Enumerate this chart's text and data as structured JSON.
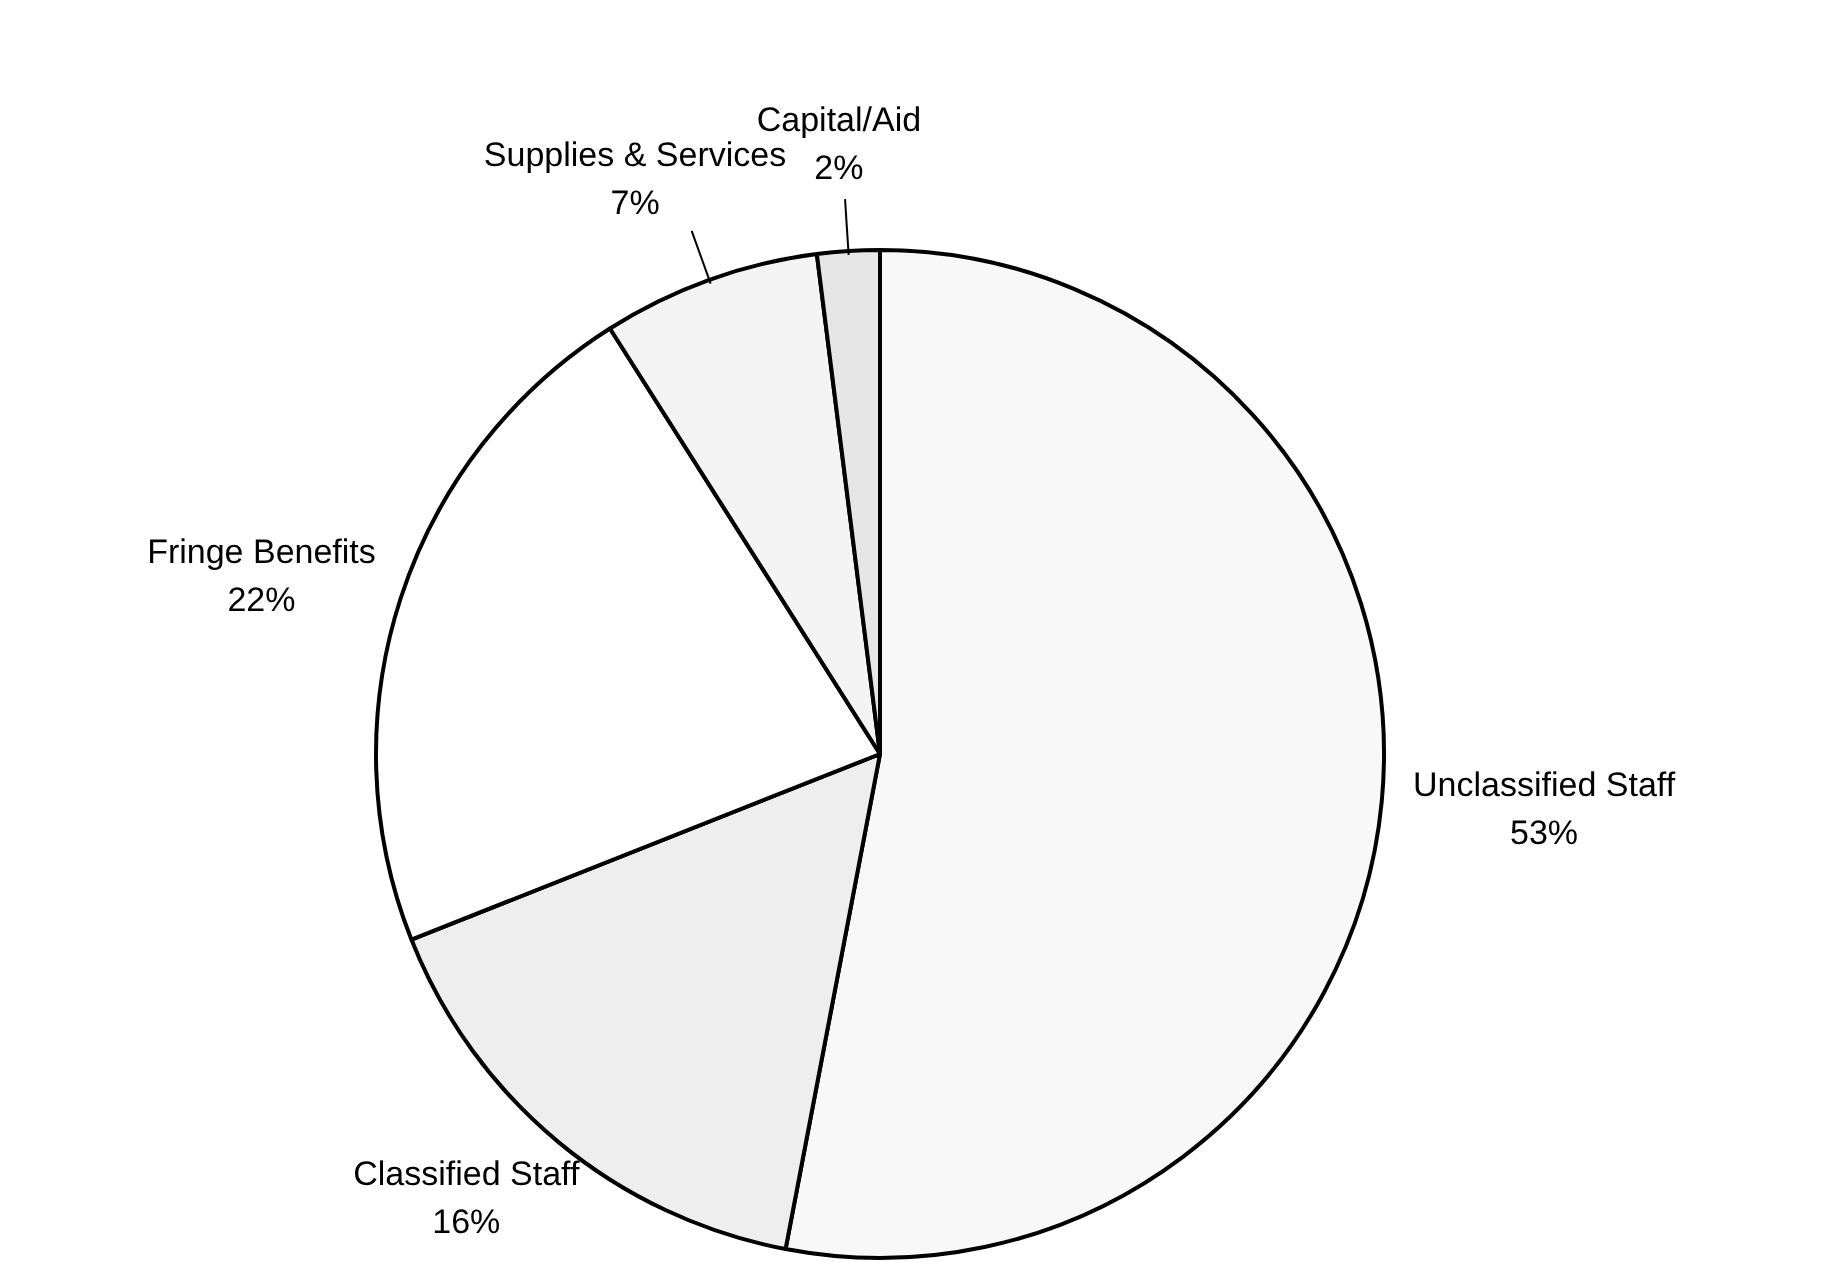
{
  "chart_data": {
    "type": "pie",
    "categories": [
      "Unclassified Staff",
      "Classified Staff",
      "Fringe Benefits",
      "Supplies & Services",
      "Capital/Aid"
    ],
    "values": [
      53,
      16,
      22,
      7,
      2
    ],
    "value_labels": [
      "53%",
      "16%",
      "22%",
      "7%",
      "2%"
    ],
    "colors": [
      "#f8f8f8",
      "#eeeeee",
      "#ffffff",
      "#f4f4f4",
      "#e6e6e6"
    ],
    "legend": false
  }
}
